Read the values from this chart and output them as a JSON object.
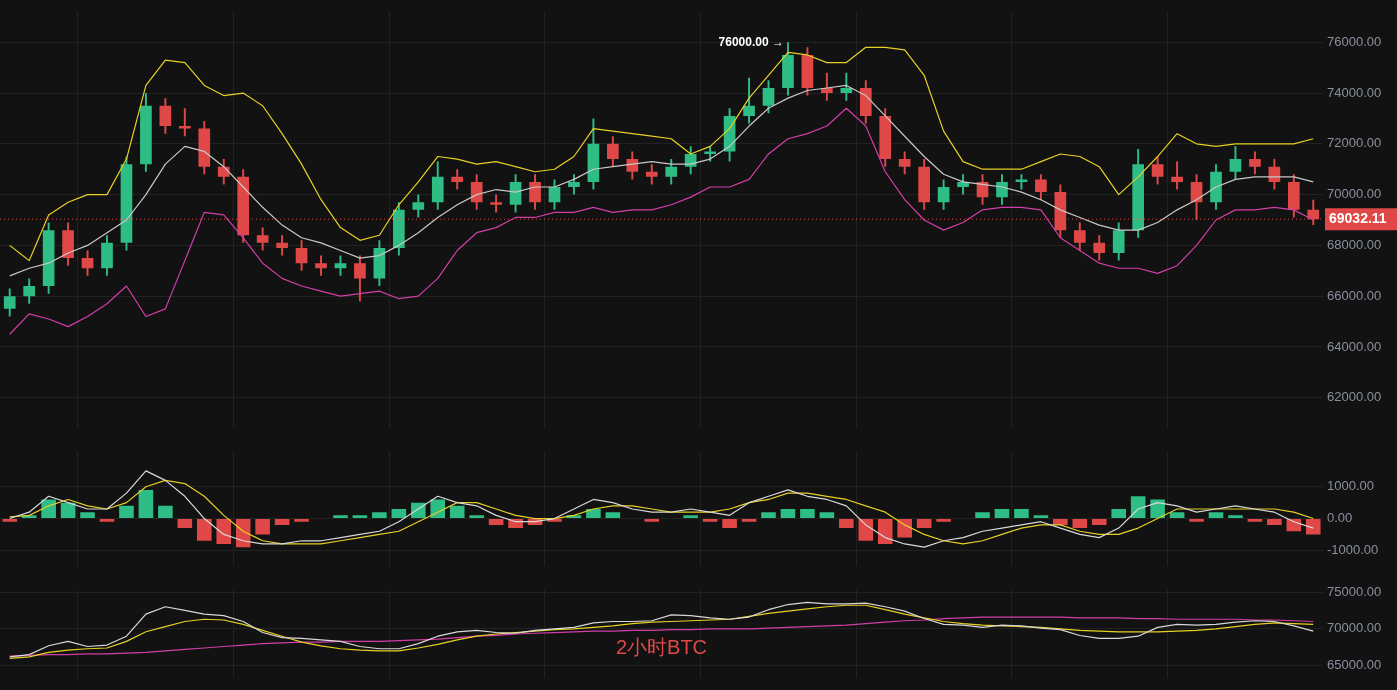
{
  "chart_data": [
    {
      "type": "candlestick",
      "categories": [
        null,
        null,
        null,
        null,
        null,
        null,
        null,
        null,
        null,
        null,
        null,
        null,
        null,
        null,
        null,
        null,
        null,
        null,
        null,
        null,
        null,
        null,
        null,
        null,
        null,
        null,
        null,
        null,
        null,
        null,
        null,
        null,
        null,
        null,
        null,
        null,
        null,
        null,
        null,
        null,
        null,
        null,
        null,
        null,
        null,
        null,
        null,
        null,
        null,
        null,
        null,
        null,
        null,
        null,
        null,
        null,
        null,
        null,
        null,
        null,
        null,
        null,
        null,
        null,
        null,
        null,
        null,
        null
      ],
      "ohlc": [
        [
          65500,
          66300,
          65200,
          66000
        ],
        [
          66000,
          66700,
          65700,
          66400
        ],
        [
          66400,
          68900,
          66100,
          68600
        ],
        [
          68600,
          68900,
          67200,
          67500
        ],
        [
          67500,
          67800,
          66800,
          67100
        ],
        [
          67100,
          68400,
          66800,
          68100
        ],
        [
          68100,
          71500,
          67800,
          71200
        ],
        [
          71200,
          74000,
          70900,
          73500
        ],
        [
          73500,
          73800,
          72400,
          72700
        ],
        [
          72700,
          73400,
          72300,
          72600
        ],
        [
          72600,
          72900,
          70800,
          71100
        ],
        [
          71100,
          71400,
          70400,
          70700
        ],
        [
          70700,
          71000,
          68100,
          68400
        ],
        [
          68400,
          68700,
          67800,
          68100
        ],
        [
          68100,
          68400,
          67600,
          67900
        ],
        [
          67900,
          68200,
          67000,
          67300
        ],
        [
          67300,
          67600,
          66800,
          67100
        ],
        [
          67100,
          67600,
          66800,
          67300
        ],
        [
          67300,
          67600,
          65800,
          66700
        ],
        [
          66700,
          68200,
          66400,
          67900
        ],
        [
          67900,
          69700,
          67600,
          69400
        ],
        [
          69400,
          70000,
          69100,
          69700
        ],
        [
          69700,
          71300,
          69400,
          70700
        ],
        [
          70700,
          71000,
          70200,
          70500
        ],
        [
          70500,
          70800,
          69400,
          69700
        ],
        [
          69700,
          70000,
          69300,
          69600
        ],
        [
          69600,
          70800,
          69300,
          70500
        ],
        [
          70500,
          70800,
          69400,
          69700
        ],
        [
          69700,
          70600,
          69400,
          70300
        ],
        [
          70300,
          70800,
          70000,
          70500
        ],
        [
          70500,
          73000,
          70200,
          72000
        ],
        [
          72000,
          72300,
          71100,
          71400
        ],
        [
          71400,
          71700,
          70600,
          70900
        ],
        [
          70900,
          71200,
          70400,
          70700
        ],
        [
          70700,
          71400,
          70400,
          71100
        ],
        [
          71100,
          71900,
          70800,
          71600
        ],
        [
          71600,
          71900,
          71300,
          71700
        ],
        [
          71700,
          73400,
          71300,
          73100
        ],
        [
          73100,
          74600,
          72800,
          73500
        ],
        [
          73500,
          74500,
          73200,
          74200
        ],
        [
          74200,
          76000,
          73900,
          75500
        ],
        [
          75500,
          75800,
          73900,
          74200
        ],
        [
          74200,
          74800,
          73700,
          74000
        ],
        [
          74000,
          74800,
          73700,
          74200
        ],
        [
          74200,
          74500,
          72800,
          73100
        ],
        [
          73100,
          73400,
          71100,
          71400
        ],
        [
          71400,
          71700,
          70800,
          71100
        ],
        [
          71100,
          71400,
          69400,
          69700
        ],
        [
          69700,
          70600,
          69400,
          70300
        ],
        [
          70300,
          70800,
          70000,
          70500
        ],
        [
          70500,
          70800,
          69600,
          69900
        ],
        [
          69900,
          70800,
          69600,
          70500
        ],
        [
          70500,
          70800,
          70200,
          70600
        ],
        [
          70600,
          70800,
          69800,
          70100
        ],
        [
          70100,
          70400,
          68300,
          68600
        ],
        [
          68600,
          68900,
          67800,
          68100
        ],
        [
          68100,
          68400,
          67400,
          67700
        ],
        [
          67700,
          68900,
          67400,
          68600
        ],
        [
          68600,
          71800,
          68300,
          71200
        ],
        [
          71200,
          71500,
          70400,
          70700
        ],
        [
          70700,
          71300,
          70200,
          70500
        ],
        [
          70500,
          70800,
          69000,
          69700
        ],
        [
          69700,
          71200,
          69400,
          70900
        ],
        [
          70900,
          71900,
          70600,
          71400
        ],
        [
          71400,
          71700,
          70800,
          71100
        ],
        [
          71100,
          71400,
          70200,
          70500
        ],
        [
          70500,
          70800,
          69100,
          69400
        ],
        [
          69400,
          69800,
          68800,
          69032.11
        ]
      ],
      "colors": [
        "#2ebd85",
        "#2ebd85",
        "#2ebd85",
        "#e04848",
        "#e04848",
        "#2ebd85",
        "#2ebd85",
        "#2ebd85",
        "#e04848",
        "#e04848",
        "#e04848",
        "#e04848",
        "#e04848",
        "#e04848",
        "#e04848",
        "#e04848",
        "#e04848",
        "#2ebd85",
        "#e04848",
        "#2ebd85",
        "#2ebd85",
        "#2ebd85",
        "#2ebd85",
        "#e04848",
        "#e04848",
        "#e04848",
        "#2ebd85",
        "#e04848",
        "#2ebd85",
        "#2ebd85",
        "#2ebd85",
        "#e04848",
        "#e04848",
        "#e04848",
        "#2ebd85",
        "#2ebd85",
        "#2ebd85",
        "#2ebd85",
        "#2ebd85",
        "#2ebd85",
        "#2ebd85",
        "#e04848",
        "#e04848",
        "#2ebd85",
        "#e04848",
        "#e04848",
        "#e04848",
        "#e04848",
        "#2ebd85",
        "#2ebd85",
        "#e04848",
        "#2ebd85",
        "#2ebd85",
        "#e04848",
        "#e04848",
        "#e04848",
        "#e04848",
        "#2ebd85",
        "#2ebd85",
        "#e04848",
        "#e04848",
        "#e04848",
        "#2ebd85",
        "#2ebd85",
        "#e04848",
        "#e04848",
        "#e04848",
        "#e04848"
      ],
      "series": [
        {
          "type": "line",
          "color": "#e6d024",
          "values": [
            68000,
            67400,
            69200,
            69700,
            70000,
            70000,
            71400,
            74300,
            75300,
            75200,
            74300,
            73900,
            74000,
            73500,
            72400,
            71200,
            69800,
            68700,
            68200,
            68400,
            69600,
            70500,
            71500,
            71400,
            71200,
            71300,
            71100,
            70900,
            71000,
            71500,
            72600,
            72500,
            72400,
            72300,
            72200,
            71600,
            71900,
            72600,
            73800,
            74700,
            75600,
            75500,
            75200,
            75200,
            75800,
            75800,
            75700,
            74700,
            72500,
            71300,
            71000,
            71000,
            71000,
            71300,
            71600,
            71500,
            71100,
            70000,
            70700,
            71500,
            72400,
            72000,
            71900,
            72000,
            72000,
            72000,
            72000,
            72200
          ]
        },
        {
          "type": "line",
          "color": "#c8c8c8",
          "values": [
            66800,
            67100,
            67300,
            67700,
            68000,
            68500,
            69000,
            70000,
            71200,
            71900,
            71700,
            71100,
            70300,
            69500,
            68800,
            68300,
            68100,
            67800,
            67500,
            67600,
            68000,
            68500,
            69100,
            69600,
            70000,
            70200,
            70100,
            70300,
            70300,
            70600,
            71000,
            71100,
            71200,
            71300,
            71200,
            71200,
            71400,
            71900,
            72700,
            73400,
            73800,
            74100,
            74200,
            74300,
            73900,
            73100,
            72300,
            71500,
            70800,
            70500,
            70400,
            70300,
            70100,
            69800,
            69400,
            69100,
            68800,
            68600,
            68600,
            68900,
            69400,
            69800,
            70300,
            70600,
            70700,
            70700,
            70700,
            70500
          ]
        },
        {
          "type": "line",
          "color": "#d23ea8",
          "values": [
            64500,
            65300,
            65100,
            64800,
            65200,
            65700,
            66400,
            65200,
            65500,
            67400,
            69300,
            69200,
            68300,
            67300,
            66700,
            66400,
            66200,
            66000,
            66100,
            66200,
            65900,
            66000,
            66700,
            67800,
            68500,
            68700,
            69100,
            69100,
            69300,
            69300,
            69500,
            69300,
            69400,
            69400,
            69600,
            69900,
            70300,
            70300,
            70600,
            71600,
            72200,
            72400,
            72700,
            73400,
            72700,
            70900,
            69800,
            69000,
            68600,
            68900,
            69400,
            69500,
            69500,
            69400,
            68300,
            67800,
            67300,
            67100,
            67100,
            66900,
            67200,
            68000,
            69000,
            69400,
            69400,
            69500,
            69400,
            69000
          ]
        }
      ],
      "ylim": [
        60800,
        77200
      ],
      "yticks": [
        {
          "value": 62000,
          "label": "62000.00"
        },
        {
          "value": 64000,
          "label": "64000.00"
        },
        {
          "value": 66000,
          "label": "66000.00"
        },
        {
          "value": 68000,
          "label": "68000.00"
        },
        {
          "value": 70000,
          "label": "70000.00"
        },
        {
          "value": 72000,
          "label": "72000.00"
        },
        {
          "value": 74000,
          "label": "74000.00"
        },
        {
          "value": 76000,
          "label": "76000.00"
        }
      ],
      "ref_lines": [
        {
          "axis": "y",
          "value": 69032.11,
          "label": "69032.11",
          "color": "#e04848",
          "line_style": "dotted"
        }
      ],
      "annotations": [
        "76000.00 →"
      ],
      "grid": true,
      "legend": false,
      "tick_labels": "y"
    },
    {
      "type": "bar",
      "categories": [
        null,
        null,
        null,
        null,
        null,
        null,
        null,
        null,
        null,
        null,
        null,
        null,
        null,
        null,
        null,
        null,
        null,
        null,
        null,
        null,
        null,
        null,
        null,
        null,
        null,
        null,
        null,
        null,
        null,
        null,
        null,
        null,
        null,
        null,
        null,
        null,
        null,
        null,
        null,
        null,
        null,
        null,
        null,
        null,
        null,
        null,
        null,
        null,
        null,
        null,
        null,
        null,
        null,
        null,
        null,
        null,
        null,
        null,
        null,
        null,
        null,
        null,
        null,
        null,
        null,
        null,
        null,
        null
      ],
      "series": [
        {
          "type": "bar",
          "values": [
            -100,
            100,
            600,
            500,
            200,
            -100,
            400,
            900,
            400,
            -300,
            -700,
            -800,
            -900,
            -500,
            -200,
            -100,
            0,
            100,
            100,
            200,
            300,
            500,
            600,
            400,
            100,
            -200,
            -300,
            -200,
            -100,
            100,
            300,
            200,
            0,
            -100,
            0,
            100,
            -100,
            -300,
            -100,
            200,
            300,
            300,
            200,
            -300,
            -700,
            -800,
            -600,
            -300,
            -100,
            0,
            200,
            300,
            300,
            100,
            -200,
            -300,
            -200,
            300,
            700,
            600,
            200,
            -100,
            200,
            100,
            -100,
            -200,
            -400,
            -500
          ],
          "colors": [
            "#e04848",
            "#2ebd85",
            "#2ebd85",
            "#2ebd85",
            "#2ebd85",
            "#e04848",
            "#2ebd85",
            "#2ebd85",
            "#2ebd85",
            "#e04848",
            "#e04848",
            "#e04848",
            "#e04848",
            "#e04848",
            "#e04848",
            "#e04848",
            "#2ebd85",
            "#2ebd85",
            "#2ebd85",
            "#2ebd85",
            "#2ebd85",
            "#2ebd85",
            "#2ebd85",
            "#2ebd85",
            "#2ebd85",
            "#e04848",
            "#e04848",
            "#e04848",
            "#e04848",
            "#2ebd85",
            "#2ebd85",
            "#2ebd85",
            "#2ebd85",
            "#e04848",
            "#2ebd85",
            "#2ebd85",
            "#e04848",
            "#e04848",
            "#e04848",
            "#2ebd85",
            "#2ebd85",
            "#2ebd85",
            "#2ebd85",
            "#e04848",
            "#e04848",
            "#e04848",
            "#e04848",
            "#e04848",
            "#e04848",
            "#2ebd85",
            "#2ebd85",
            "#2ebd85",
            "#2ebd85",
            "#2ebd85",
            "#e04848",
            "#e04848",
            "#e04848",
            "#2ebd85",
            "#2ebd85",
            "#2ebd85",
            "#2ebd85",
            "#e04848",
            "#2ebd85",
            "#2ebd85",
            "#e04848",
            "#e04848",
            "#e04848",
            "#e04848"
          ]
        },
        {
          "type": "line",
          "color": "#d8d8d8",
          "values": [
            0,
            200,
            700,
            500,
            300,
            300,
            800,
            1500,
            1200,
            700,
            0,
            -500,
            -700,
            -800,
            -800,
            -700,
            -700,
            -600,
            -500,
            -400,
            -100,
            300,
            700,
            500,
            400,
            100,
            -100,
            -100,
            0,
            300,
            600,
            500,
            300,
            200,
            200,
            300,
            200,
            100,
            500,
            700,
            900,
            700,
            600,
            400,
            -200,
            -600,
            -800,
            -900,
            -700,
            -600,
            -400,
            -300,
            -200,
            -100,
            -300,
            -500,
            -600,
            -300,
            300,
            500,
            400,
            200,
            300,
            400,
            300,
            200,
            -100,
            -300
          ]
        },
        {
          "type": "line",
          "color": "#e6d024",
          "values": [
            50,
            100,
            400,
            600,
            400,
            300,
            500,
            1000,
            1200,
            1100,
            700,
            100,
            -400,
            -700,
            -800,
            -800,
            -800,
            -700,
            -600,
            -500,
            -400,
            -100,
            200,
            500,
            500,
            300,
            100,
            0,
            0,
            100,
            300,
            400,
            400,
            300,
            200,
            200,
            200,
            300,
            500,
            600,
            800,
            800,
            700,
            600,
            400,
            200,
            -200,
            -500,
            -700,
            -800,
            -700,
            -500,
            -300,
            -200,
            -200,
            -400,
            -500,
            -500,
            -300,
            0,
            300,
            300,
            300,
            300,
            300,
            300,
            200,
            0
          ]
        }
      ],
      "ylim": [
        -1500,
        2100
      ],
      "yticks": [
        {
          "value": -1000,
          "label": "-1000.00"
        },
        {
          "value": 0,
          "label": "0.00"
        },
        {
          "value": 1000,
          "label": "1000.00"
        }
      ],
      "grid": true,
      "legend": false,
      "tick_labels": "y"
    },
    {
      "type": "line",
      "categories": [
        null,
        null,
        null,
        null,
        null,
        null,
        null,
        null,
        null,
        null,
        null,
        null,
        null,
        null,
        null,
        null,
        null,
        null,
        null,
        null,
        null,
        null,
        null,
        null,
        null,
        null,
        null,
        null,
        null,
        null,
        null,
        null,
        null,
        null,
        null,
        null,
        null,
        null,
        null,
        null,
        null,
        null,
        null,
        null,
        null,
        null,
        null,
        null,
        null,
        null,
        null,
        null,
        null,
        null,
        null,
        null,
        null,
        null,
        null,
        null,
        null,
        null,
        null,
        null,
        null,
        null,
        null,
        null
      ],
      "series": [
        {
          "color": "#d8d8d8",
          "values": [
            66200,
            66500,
            67700,
            68300,
            67600,
            67800,
            69000,
            72000,
            73000,
            72500,
            72000,
            71800,
            71000,
            69500,
            68800,
            68700,
            68500,
            68300,
            67600,
            67300,
            67300,
            68000,
            69000,
            69600,
            69800,
            69500,
            69400,
            69800,
            70000,
            70200,
            70800,
            71000,
            71000,
            71100,
            71900,
            71800,
            71500,
            71300,
            71600,
            72600,
            73300,
            73600,
            73400,
            73400,
            73500,
            73000,
            72400,
            71400,
            70600,
            70500,
            70200,
            70500,
            70400,
            70100,
            69900,
            69100,
            68700,
            68700,
            69000,
            70200,
            70600,
            70500,
            70600,
            70900,
            71100,
            71000,
            70400,
            69700
          ]
        },
        {
          "color": "#e6d024",
          "values": [
            66000,
            66200,
            66800,
            67100,
            67300,
            67400,
            68300,
            69600,
            70300,
            71000,
            71300,
            71200,
            70600,
            69800,
            69000,
            68200,
            67700,
            67300,
            67100,
            67000,
            67000,
            67400,
            67900,
            68500,
            69000,
            69300,
            69500,
            69700,
            69900,
            70000,
            70200,
            70400,
            70700,
            70900,
            71000,
            71100,
            71200,
            71300,
            71700,
            72100,
            72400,
            72700,
            73000,
            73200,
            73200,
            72600,
            72000,
            71500,
            71000,
            70700,
            70500,
            70400,
            70300,
            70200,
            70000,
            69800,
            69700,
            69600,
            69600,
            69600,
            69700,
            69800,
            70000,
            70300,
            70600,
            70800,
            70700,
            70600
          ]
        },
        {
          "color": "#d23ea8",
          "values": [
            66300,
            66400,
            66500,
            66500,
            66600,
            66600,
            66700,
            66800,
            67000,
            67200,
            67400,
            67600,
            67800,
            68000,
            68100,
            68200,
            68200,
            68300,
            68300,
            68300,
            68400,
            68500,
            68600,
            68800,
            69000,
            69100,
            69300,
            69400,
            69500,
            69600,
            69700,
            69700,
            69800,
            69800,
            69900,
            69900,
            70000,
            70000,
            70000,
            70100,
            70200,
            70300,
            70400,
            70500,
            70700,
            70900,
            71100,
            71200,
            71400,
            71500,
            71600,
            71600,
            71600,
            71600,
            71600,
            71500,
            71500,
            71500,
            71400,
            71400,
            71300,
            71300,
            71300,
            71300,
            71200,
            71200,
            71100,
            71000
          ]
        }
      ],
      "ylim": [
        63300,
        75300
      ],
      "yticks": [
        {
          "value": 65000,
          "label": "65000.00"
        },
        {
          "value": 70000,
          "label": "70000.00"
        },
        {
          "value": 75000,
          "label": "75000.00"
        }
      ],
      "annotations": [
        "2小时BTC"
      ],
      "grid": true,
      "legend": false,
      "tick_labels": "y"
    }
  ]
}
